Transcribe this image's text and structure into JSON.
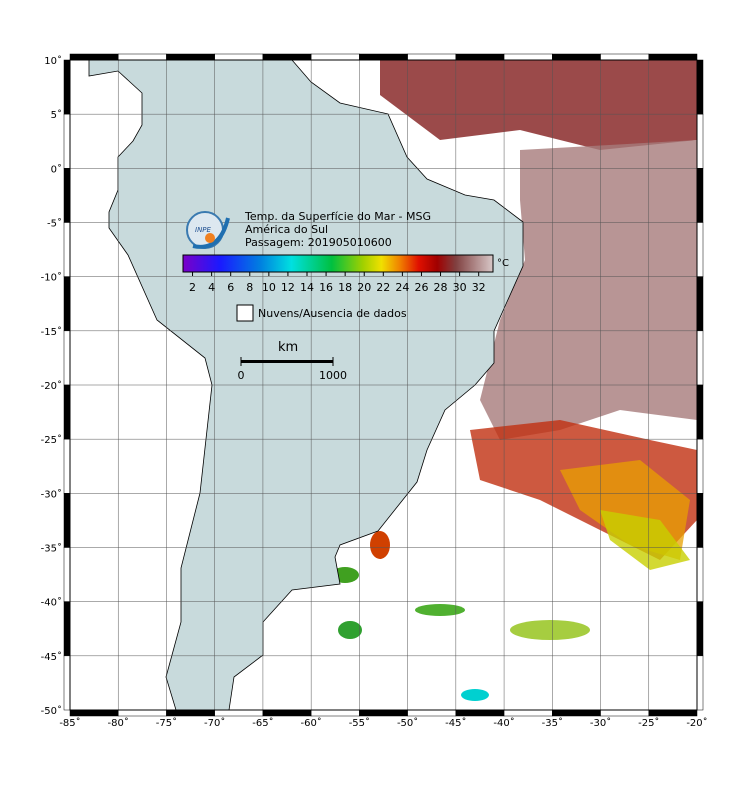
{
  "map": {
    "title_lines": [
      "Temp. da Superfície do Mar - MSG",
      "América do Sul",
      "Passagem: 201905010600"
    ],
    "logo_text": "INPE",
    "colorbar": {
      "unit": "°C",
      "lim": [
        1,
        33.5
      ],
      "ticks": [
        2,
        4,
        6,
        8,
        10,
        12,
        14,
        16,
        18,
        20,
        22,
        24,
        26,
        28,
        30,
        32
      ]
    },
    "legend": "Nuvens/Ausencia de dados",
    "scale_bar": {
      "unit": "km",
      "ticks": [
        0,
        1000
      ]
    },
    "lon_lim": [
      -85,
      -20
    ],
    "lat_lim": [
      -50,
      10
    ],
    "lon_ticks": [
      {
        "value": -85,
        "label": "-85˚"
      },
      {
        "value": -80,
        "label": "-80˚"
      },
      {
        "value": -75,
        "label": "-75˚"
      },
      {
        "value": -70,
        "label": "-70˚"
      },
      {
        "value": -65,
        "label": "-65˚"
      },
      {
        "value": -60,
        "label": "-60˚"
      },
      {
        "value": -55,
        "label": "-55˚"
      },
      {
        "value": -50,
        "label": "-50˚"
      },
      {
        "value": -45,
        "label": "-45˚"
      },
      {
        "value": -40,
        "label": "-40˚"
      },
      {
        "value": -35,
        "label": "-35˚"
      },
      {
        "value": -30,
        "label": "-30˚"
      },
      {
        "value": -25,
        "label": "-25˚"
      },
      {
        "value": -20,
        "label": "-20˚"
      }
    ],
    "lat_ticks": [
      {
        "value": 10,
        "label": "10˚"
      },
      {
        "value": 5,
        "label": "5˚"
      },
      {
        "value": 0,
        "label": "0˚"
      },
      {
        "value": -5,
        "label": "-5˚"
      },
      {
        "value": -10,
        "label": "-10˚"
      },
      {
        "value": -15,
        "label": "-15˚"
      },
      {
        "value": -20,
        "label": "-20˚"
      },
      {
        "value": -25,
        "label": "-25˚"
      },
      {
        "value": -30,
        "label": "-30˚"
      },
      {
        "value": -35,
        "label": "-35˚"
      },
      {
        "value": -40,
        "label": "-40˚"
      },
      {
        "value": -45,
        "label": "-45˚"
      },
      {
        "value": -50,
        "label": "-50˚"
      }
    ]
  }
}
